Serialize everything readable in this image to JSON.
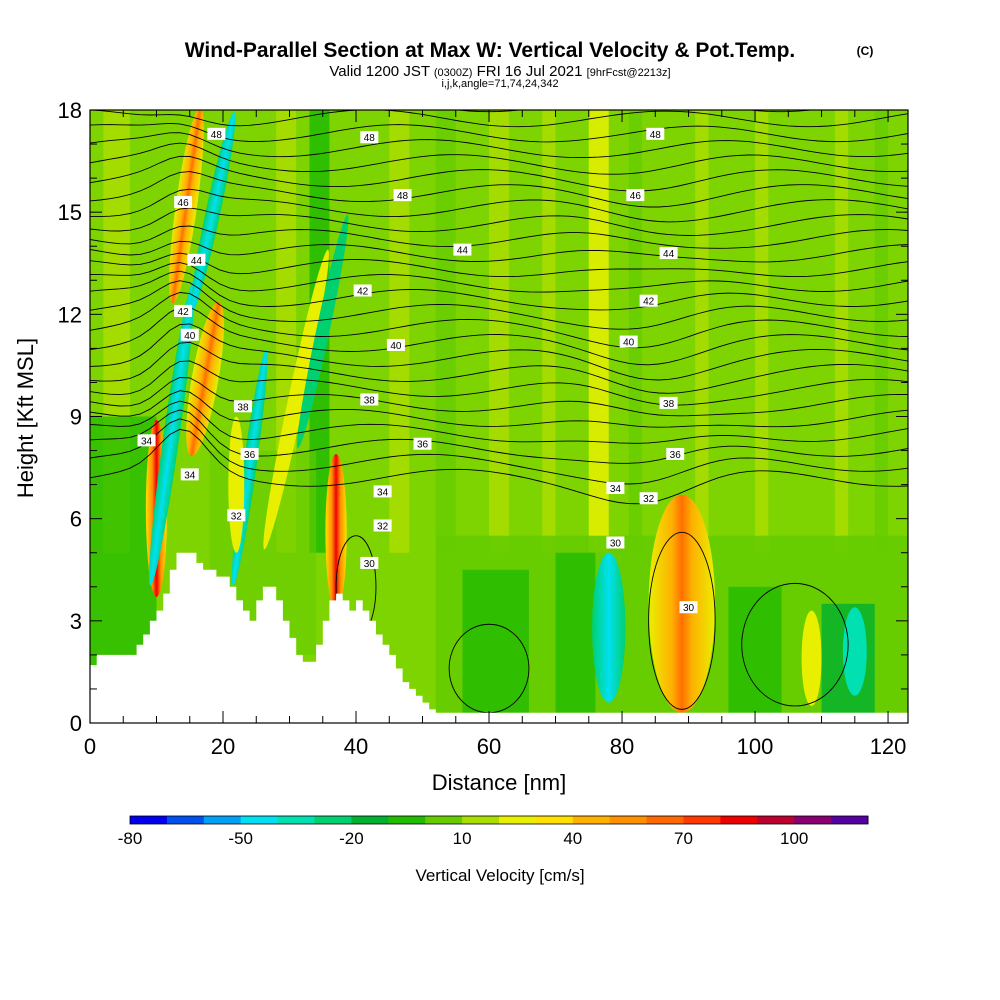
{
  "chart_data": {
    "type": "heatmap",
    "title": "Wind-Parallel Section at Max W: Vertical Velocity & Pot.Temp.",
    "title_mark": "(C)",
    "subtitle": {
      "prefix": "Valid 1200 JST",
      "utc": "(0300Z)",
      "date": "FRI 16 Jul 2021",
      "forecast": "[9hrFcst@2213z]"
    },
    "params": "i,j,k,angle=71,74,24,342",
    "xlabel": "Distance [nm]",
    "ylabel": "Height [Kft MSL]",
    "xlim": [
      0,
      123
    ],
    "ylim": [
      0,
      18
    ],
    "x_ticks": [
      0,
      20,
      40,
      60,
      80,
      100,
      120
    ],
    "y_ticks": [
      0,
      3,
      6,
      9,
      12,
      15,
      18
    ],
    "grid": false,
    "colorbar": {
      "label": "Vertical Velocity [cm/s]",
      "tick_labels": [
        "-80",
        "-50",
        "-20",
        "10",
        "40",
        "70",
        "100"
      ],
      "tick_values": [
        -80,
        -50,
        -20,
        10,
        40,
        70,
        100
      ],
      "levels": [
        -80,
        -70,
        -60,
        -50,
        -40,
        -30,
        -20,
        -10,
        0,
        10,
        20,
        30,
        40,
        50,
        60,
        70,
        80,
        90,
        100,
        110
      ],
      "colors": [
        "#0000ee",
        "#0050f0",
        "#00a0f5",
        "#00e0f0",
        "#00e0b0",
        "#00d070",
        "#00b030",
        "#22bb00",
        "#66cc00",
        "#aadd00",
        "#e8f000",
        "#ffe000",
        "#ffb000",
        "#ff9000",
        "#ff6800",
        "#ff3800",
        "#ee0000",
        "#bb0030",
        "#880070",
        "#5500a0"
      ]
    },
    "isentrope_labels": [
      {
        "text": "48",
        "x": 19,
        "z": 17.3
      },
      {
        "text": "48",
        "x": 42,
        "z": 17.2
      },
      {
        "text": "48",
        "x": 85,
        "z": 17.3
      },
      {
        "text": "48",
        "x": 47,
        "z": 15.5
      },
      {
        "text": "46",
        "x": 82,
        "z": 15.5
      },
      {
        "text": "46",
        "x": 14,
        "z": 15.3
      },
      {
        "text": "44",
        "x": 56,
        "z": 13.9
      },
      {
        "text": "44",
        "x": 87,
        "z": 13.8
      },
      {
        "text": "44",
        "x": 16,
        "z": 13.6
      },
      {
        "text": "42",
        "x": 41,
        "z": 12.7
      },
      {
        "text": "42",
        "x": 84,
        "z": 12.4
      },
      {
        "text": "42",
        "x": 14,
        "z": 12.1
      },
      {
        "text": "40",
        "x": 46,
        "z": 11.1
      },
      {
        "text": "40",
        "x": 81,
        "z": 11.2
      },
      {
        "text": "40",
        "x": 15,
        "z": 11.4
      },
      {
        "text": "38",
        "x": 42,
        "z": 9.5
      },
      {
        "text": "38",
        "x": 87,
        "z": 9.4
      },
      {
        "text": "38",
        "x": 23,
        "z": 9.3
      },
      {
        "text": "36",
        "x": 50,
        "z": 8.2
      },
      {
        "text": "36",
        "x": 88,
        "z": 7.9
      },
      {
        "text": "36",
        "x": 24,
        "z": 7.9
      },
      {
        "text": "34",
        "x": 8.5,
        "z": 8.3
      },
      {
        "text": "34",
        "x": 15,
        "z": 7.3
      },
      {
        "text": "34",
        "x": 44,
        "z": 6.8
      },
      {
        "text": "34",
        "x": 79,
        "z": 6.9
      },
      {
        "text": "32",
        "x": 84,
        "z": 6.6
      },
      {
        "text": "32",
        "x": 22,
        "z": 6.1
      },
      {
        "text": "32",
        "x": 44,
        "z": 5.8
      },
      {
        "text": "30",
        "x": 79,
        "z": 5.3
      },
      {
        "text": "30",
        "x": 42,
        "z": 4.7
      },
      {
        "text": "30",
        "x": 90,
        "z": 3.4
      }
    ],
    "terrain_height": [
      [
        0,
        1.7
      ],
      [
        1,
        2.0
      ],
      [
        6,
        2.0
      ],
      [
        7,
        2.3
      ],
      [
        8,
        2.6
      ],
      [
        9,
        3.0
      ],
      [
        10,
        3.3
      ],
      [
        11,
        3.8
      ],
      [
        12,
        4.5
      ],
      [
        13,
        5.0
      ],
      [
        15,
        5.0
      ],
      [
        16,
        4.7
      ],
      [
        17,
        4.5
      ],
      [
        19,
        4.3
      ],
      [
        20,
        4.3
      ],
      [
        21,
        4.0
      ],
      [
        22,
        3.6
      ],
      [
        23,
        3.3
      ],
      [
        24,
        3.0
      ],
      [
        25,
        3.6
      ],
      [
        26,
        4.0
      ],
      [
        27,
        4.0
      ],
      [
        28,
        3.6
      ],
      [
        29,
        3.0
      ],
      [
        30,
        2.5
      ],
      [
        31,
        2.0
      ],
      [
        32,
        1.8
      ],
      [
        33,
        1.8
      ],
      [
        34,
        2.3
      ],
      [
        35,
        3.0
      ],
      [
        36,
        3.6
      ],
      [
        37,
        3.8
      ],
      [
        38,
        3.6
      ],
      [
        39,
        3.3
      ],
      [
        40,
        3.6
      ],
      [
        41,
        3.3
      ],
      [
        42,
        3.0
      ],
      [
        43,
        2.6
      ],
      [
        44,
        2.3
      ],
      [
        45,
        2.0
      ],
      [
        46,
        1.6
      ],
      [
        47,
        1.2
      ],
      [
        48,
        1.0
      ],
      [
        49,
        0.8
      ],
      [
        50,
        0.6
      ],
      [
        51,
        0.4
      ],
      [
        52,
        0.3
      ],
      [
        55,
        0.3
      ],
      [
        58,
        0.3
      ],
      [
        95,
        0.3
      ],
      [
        96,
        0.3
      ],
      [
        123,
        0.3
      ]
    ]
  }
}
